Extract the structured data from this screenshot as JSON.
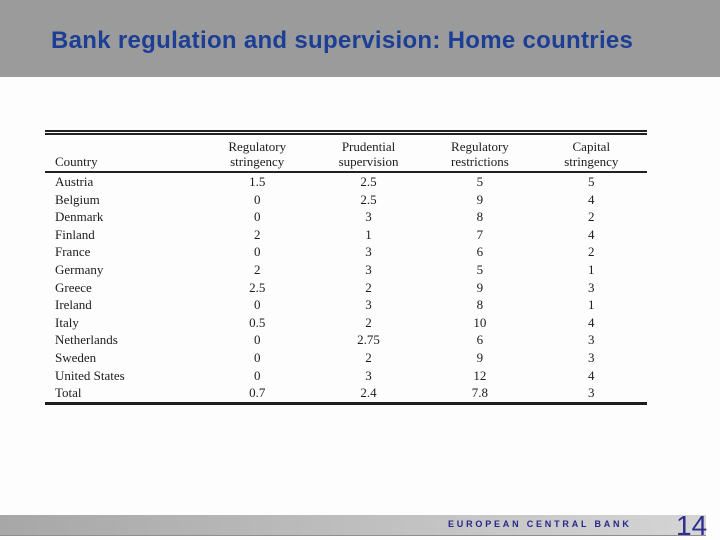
{
  "slide": {
    "title": "Bank regulation and supervision: Home countries"
  },
  "table": {
    "columns": [
      "Country",
      "Regulatory stringency",
      "Prudential supervision",
      "Regulatory restrictions",
      "Capital stringency"
    ],
    "rows": [
      [
        "Austria",
        "1.5",
        "2.5",
        "5",
        "5"
      ],
      [
        "Belgium",
        "0",
        "2.5",
        "9",
        "4"
      ],
      [
        "Denmark",
        "0",
        "3",
        "8",
        "2"
      ],
      [
        "Finland",
        "2",
        "1",
        "7",
        "4"
      ],
      [
        "France",
        "0",
        "3",
        "6",
        "2"
      ],
      [
        "Germany",
        "2",
        "3",
        "5",
        "1"
      ],
      [
        "Greece",
        "2.5",
        "2",
        "9",
        "3"
      ],
      [
        "Ireland",
        "0",
        "3",
        "8",
        "1"
      ],
      [
        "Italy",
        "0.5",
        "2",
        "10",
        "4"
      ],
      [
        "Netherlands",
        "0",
        "2.75",
        "6",
        "3"
      ],
      [
        "Sweden",
        "0",
        "2",
        "9",
        "3"
      ],
      [
        "United States",
        "0",
        "3",
        "12",
        "4"
      ],
      [
        "Total",
        "0.7",
        "2.4",
        "7.8",
        "3"
      ]
    ]
  },
  "footer": {
    "brand": "EUROPEAN CENTRAL BANK",
    "page_number": "14"
  },
  "colors": {
    "title_blue": "#1c3e94",
    "header_band_gray": "#9b9b9b",
    "footer_band_gray": "#b8b8b8",
    "footer_brand_blue": "#26268c",
    "page_number_blue": "#2e2e90",
    "table_line": "#222222"
  }
}
